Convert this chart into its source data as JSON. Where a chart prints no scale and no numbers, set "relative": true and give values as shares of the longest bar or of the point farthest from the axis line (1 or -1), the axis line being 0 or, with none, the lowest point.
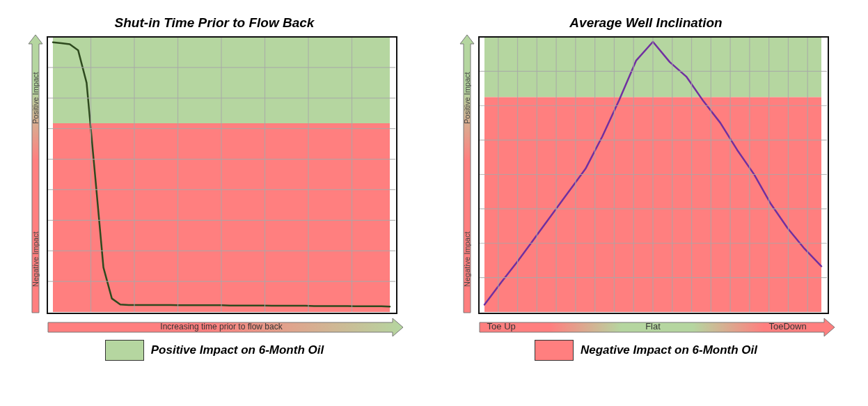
{
  "chart_data": [
    {
      "type": "line",
      "title": "Shut-in Time Prior to Flow Back",
      "xlabel": "Increasing time prior to flow back",
      "relative": true,
      "grid": true,
      "categories": [
        null,
        null,
        null,
        null,
        null,
        null,
        null,
        null,
        null,
        null,
        null,
        null,
        null,
        null,
        null,
        null,
        null,
        null,
        null,
        null,
        null,
        null,
        null,
        null,
        null,
        null,
        null,
        null,
        null,
        null,
        null,
        null,
        null,
        null,
        null,
        null,
        null,
        null,
        null,
        null,
        null
      ],
      "annotations": [
        "Positive Impact",
        "Negative Impact"
      ],
      "bands": [
        {
          "axis": "y",
          "from": 0.7,
          "to": 1.02,
          "color": "#b5d6a0",
          "label": "Positive Impact on 6-Month Oil"
        },
        {
          "axis": "y",
          "from": 0,
          "to": 0.7,
          "color": "#ff7f7f"
        }
      ],
      "series": [
        {
          "color": "#2e4a1e",
          "values": [
            1,
            0.997,
            0.993,
            0.97,
            0.85,
            0.51,
            0.165,
            0.05,
            0.028,
            0.026,
            0.026,
            0.026,
            0.026,
            0.026,
            0.026,
            0.025,
            0.025,
            0.025,
            0.025,
            0.025,
            0.025,
            0.024,
            0.024,
            0.024,
            0.024,
            0.024,
            0.023,
            0.023,
            0.023,
            0.023,
            0.023,
            0.022,
            0.022,
            0.022,
            0.022,
            0.022,
            0.021,
            0.021,
            0.021,
            0.021,
            0.02
          ]
        }
      ]
    },
    {
      "type": "line",
      "title": "Average Well Inclination",
      "relative": true,
      "grid": true,
      "categories": [
        null,
        "Toe Up",
        null,
        null,
        null,
        null,
        null,
        null,
        null,
        null,
        "Flat",
        null,
        null,
        null,
        null,
        null,
        null,
        null,
        "ToeDown",
        null,
        null
      ],
      "annotations": [
        "Positive Impact",
        "Negative Impact"
      ],
      "bands": [
        {
          "axis": "y",
          "from": 0.795,
          "to": 1.018,
          "color": "#b5d6a0"
        },
        {
          "axis": "y",
          "from": 0,
          "to": 0.795,
          "color": "#ff7f7f",
          "label": "Negative Impact on 6-Month Oil"
        }
      ],
      "series": [
        {
          "color": "#7030a0",
          "values": [
            0.027,
            0.11,
            0.19,
            0.275,
            0.36,
            0.445,
            0.53,
            0.65,
            0.785,
            0.93,
            1,
            0.925,
            0.87,
            0.78,
            0.7,
            0.6,
            0.51,
            0.4,
            0.31,
            0.234,
            0.169
          ]
        }
      ]
    }
  ]
}
